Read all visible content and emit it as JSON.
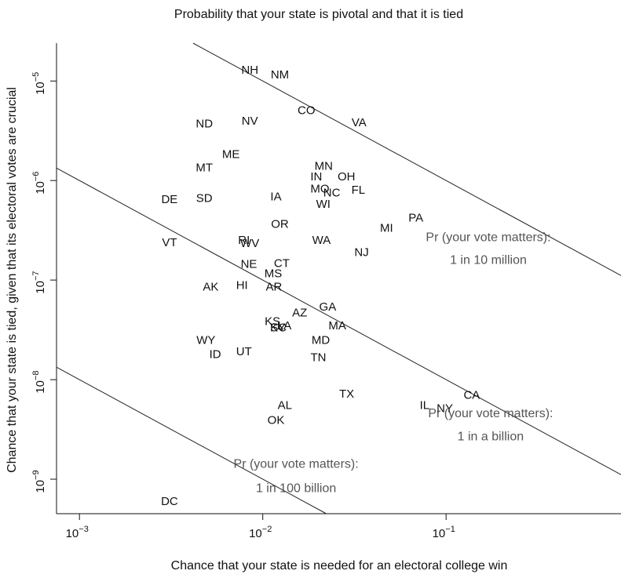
{
  "chart_data": {
    "type": "scatter",
    "title": "Probability that your state is pivotal and that it is tied",
    "xlabel": "Chance that your state is needed for an electoral college win",
    "ylabel": "Chance that your state is tied, given that its electoral votes are crucial",
    "xscale": "log",
    "yscale": "log",
    "xlim": [
      0.00075,
      0.9
    ],
    "ylim": [
      4.5e-10,
      2.4e-05
    ],
    "x_ticks": [
      {
        "value": 0.001,
        "base": "10",
        "exp": "−3"
      },
      {
        "value": 0.01,
        "base": "10",
        "exp": "−2"
      },
      {
        "value": 0.1,
        "base": "10",
        "exp": "−1"
      }
    ],
    "y_ticks": [
      {
        "value": 1e-09,
        "base": "10",
        "exp": "−9"
      },
      {
        "value": 1e-08,
        "base": "10",
        "exp": "−8"
      },
      {
        "value": 1e-07,
        "base": "10",
        "exp": "−7"
      },
      {
        "value": 1e-06,
        "base": "10",
        "exp": "−6"
      },
      {
        "value": 1e-05,
        "base": "10",
        "exp": "−5"
      }
    ],
    "points": [
      {
        "label": "NH",
        "x": 0.0085,
        "y": 1.3e-05
      },
      {
        "label": "NM",
        "x": 0.0124,
        "y": 1.16e-05
      },
      {
        "label": "CO",
        "x": 0.0173,
        "y": 5.1e-06
      },
      {
        "label": "VA",
        "x": 0.0335,
        "y": 3.85e-06
      },
      {
        "label": "ND",
        "x": 0.0048,
        "y": 3.75e-06
      },
      {
        "label": "NV",
        "x": 0.0085,
        "y": 4e-06
      },
      {
        "label": "ME",
        "x": 0.0067,
        "y": 1.85e-06
      },
      {
        "label": "MT",
        "x": 0.0048,
        "y": 1.35e-06
      },
      {
        "label": "MN",
        "x": 0.0215,
        "y": 1.4e-06
      },
      {
        "label": "IN",
        "x": 0.0196,
        "y": 1.1e-06
      },
      {
        "label": "OH",
        "x": 0.0286,
        "y": 1.1e-06
      },
      {
        "label": "MO",
        "x": 0.0205,
        "y": 8.3e-07
      },
      {
        "label": "NC",
        "x": 0.0238,
        "y": 7.6e-07
      },
      {
        "label": "FL",
        "x": 0.0332,
        "y": 8.1e-07
      },
      {
        "label": "IA",
        "x": 0.0118,
        "y": 6.9e-07
      },
      {
        "label": "WI",
        "x": 0.0214,
        "y": 5.8e-07
      },
      {
        "label": "DE",
        "x": 0.0031,
        "y": 6.5e-07
      },
      {
        "label": "SD",
        "x": 0.0048,
        "y": 6.7e-07
      },
      {
        "label": "PA",
        "x": 0.0684,
        "y": 4.25e-07
      },
      {
        "label": "OR",
        "x": 0.0124,
        "y": 3.65e-07
      },
      {
        "label": "MI",
        "x": 0.0473,
        "y": 3.35e-07
      },
      {
        "label": "WA",
        "x": 0.0209,
        "y": 2.53e-07
      },
      {
        "label": "RI",
        "x": 0.0079,
        "y": 2.53e-07
      },
      {
        "label": "WV",
        "x": 0.0085,
        "y": 2.35e-07
      },
      {
        "label": "VT",
        "x": 0.0031,
        "y": 2.39e-07
      },
      {
        "label": "NJ",
        "x": 0.0346,
        "y": 1.9e-07
      },
      {
        "label": "NE",
        "x": 0.0084,
        "y": 1.45e-07
      },
      {
        "label": "CT",
        "x": 0.0127,
        "y": 1.48e-07
      },
      {
        "label": "MS",
        "x": 0.0114,
        "y": 1.17e-07
      },
      {
        "label": "AK",
        "x": 0.0052,
        "y": 8.6e-08
      },
      {
        "label": "HI",
        "x": 0.0077,
        "y": 8.9e-08
      },
      {
        "label": "AR",
        "x": 0.0115,
        "y": 8.6e-08
      },
      {
        "label": "GA",
        "x": 0.0226,
        "y": 5.4e-08
      },
      {
        "label": "AZ",
        "x": 0.0159,
        "y": 4.7e-08
      },
      {
        "label": "KS",
        "x": 0.0113,
        "y": 3.85e-08
      },
      {
        "label": "SC",
        "x": 0.0122,
        "y": 3.35e-08
      },
      {
        "label": "KY",
        "x": 0.0121,
        "y": 3.35e-08
      },
      {
        "label": "LA",
        "x": 0.0131,
        "y": 3.5e-08
      },
      {
        "label": "MA",
        "x": 0.0255,
        "y": 3.5e-08
      },
      {
        "label": "WY",
        "x": 0.0049,
        "y": 2.5e-08
      },
      {
        "label": "MD",
        "x": 0.0207,
        "y": 2.5e-08
      },
      {
        "label": "UT",
        "x": 0.0079,
        "y": 1.93e-08
      },
      {
        "label": "ID",
        "x": 0.0055,
        "y": 1.8e-08
      },
      {
        "label": "TN",
        "x": 0.0201,
        "y": 1.68e-08
      },
      {
        "label": "TX",
        "x": 0.0287,
        "y": 7.2e-09
      },
      {
        "label": "CA",
        "x": 0.1381,
        "y": 7e-09
      },
      {
        "label": "AL",
        "x": 0.0132,
        "y": 5.55e-09
      },
      {
        "label": "IL",
        "x": 0.0764,
        "y": 5.55e-09
      },
      {
        "label": "NY",
        "x": 0.0985,
        "y": 5.15e-09
      },
      {
        "label": "OK",
        "x": 0.0118,
        "y": 3.95e-09
      },
      {
        "label": "DC",
        "x": 0.0031,
        "y": 6e-10
      }
    ],
    "iso_lines": [
      {
        "product": 1e-07,
        "label_line1": "Pr (your vote matters):",
        "label_line2": "1 in 10 million",
        "label_x": 0.17,
        "label_y1": 2.45e-07,
        "label_y2": 1.45e-07
      },
      {
        "product": 1e-09,
        "label_line1": "Pr (your vote matters):",
        "label_line2": "1 in a billion",
        "label_x": 0.175,
        "label_y1": 4.2e-09,
        "label_y2": 2.45e-09
      },
      {
        "product": 1e-11,
        "label_line1": "Pr (your vote matters):",
        "label_line2": "1 in 100 billion",
        "label_x": 0.0152,
        "label_y1": 1.3e-09,
        "label_y2": 7.4e-10
      }
    ],
    "grid": false,
    "legend": "none"
  }
}
